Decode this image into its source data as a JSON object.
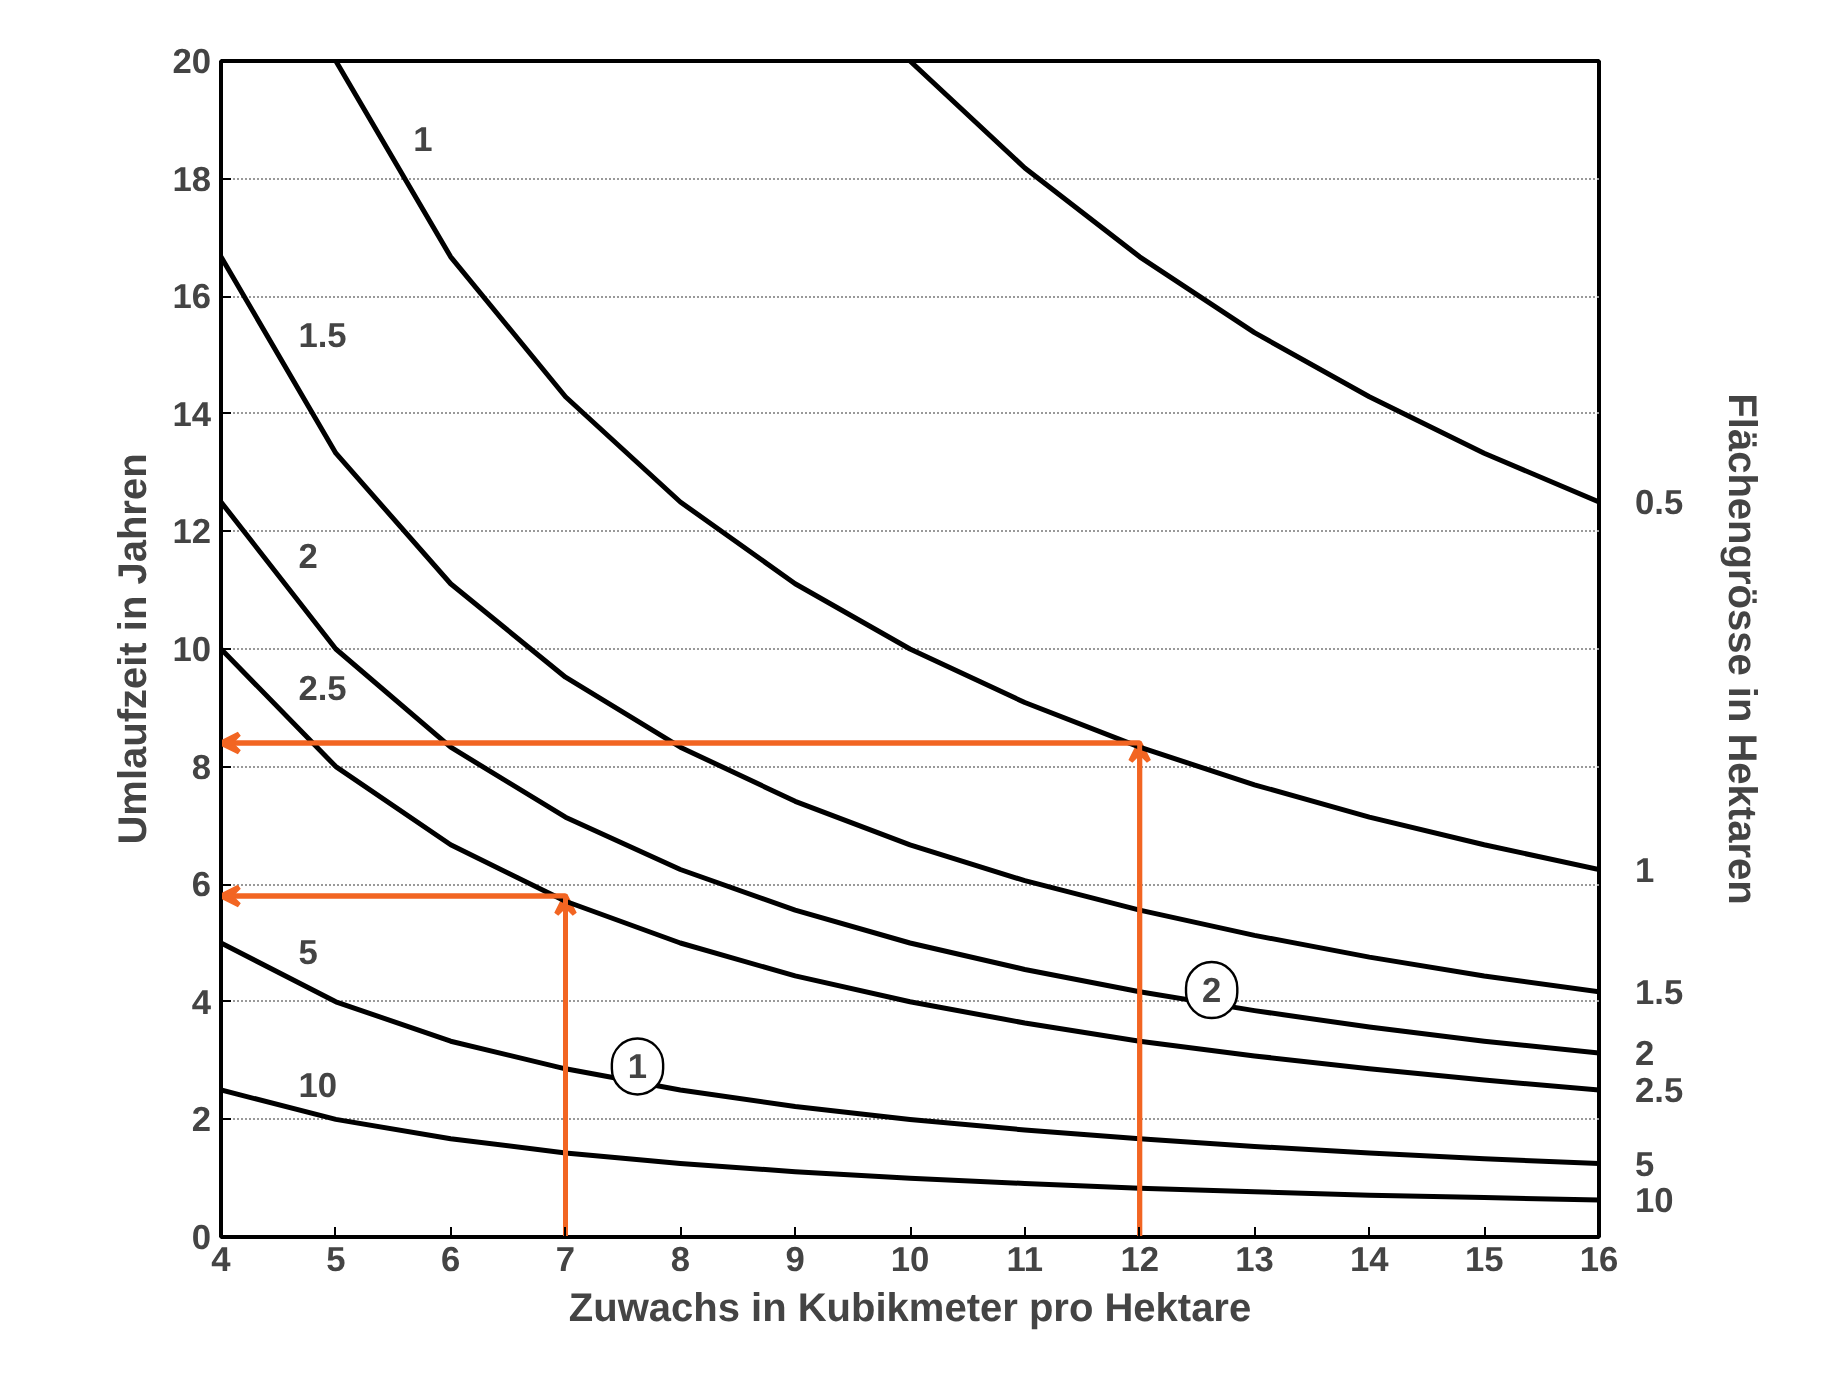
{
  "chart_data": {
    "type": "line",
    "xlabel": "Zuwachs in Kubikmeter pro Hektare",
    "ylabel": "Umlaufzeit in Jahren",
    "y2label": "Flächengrösse in Hektaren",
    "x": [
      4,
      5,
      6,
      7,
      8,
      9,
      10,
      11,
      12,
      13,
      14,
      15,
      16
    ],
    "xlim": [
      4,
      16
    ],
    "ylim": [
      0,
      20
    ],
    "xticks": [
      4,
      5,
      6,
      7,
      8,
      9,
      10,
      11,
      12,
      13,
      14,
      15,
      16
    ],
    "yticks": [
      0,
      2,
      4,
      6,
      8,
      10,
      12,
      14,
      16,
      18,
      20
    ],
    "grid": "y",
    "marker": "none",
    "line_style": "solid",
    "series": [
      {
        "name": "0.5",
        "color": "#000000",
        "values": [
          null,
          null,
          null,
          null,
          null,
          null,
          20,
          18.18,
          16.67,
          15.38,
          14.29,
          13.33,
          12.5
        ]
      },
      {
        "name": "1",
        "color": "#000000",
        "values": [
          null,
          20,
          16.67,
          14.29,
          12.5,
          11.11,
          10,
          9.09,
          8.33,
          7.69,
          7.14,
          6.67,
          6.25
        ]
      },
      {
        "name": "1.5",
        "color": "#000000",
        "values": [
          16.67,
          13.33,
          11.11,
          9.52,
          8.33,
          7.41,
          6.67,
          6.06,
          5.56,
          5.13,
          4.76,
          4.44,
          4.17
        ]
      },
      {
        "name": "2",
        "color": "#000000",
        "values": [
          12.5,
          10,
          8.33,
          7.14,
          6.25,
          5.56,
          5,
          4.55,
          4.17,
          3.85,
          3.57,
          3.33,
          3.13
        ]
      },
      {
        "name": "2.5",
        "color": "#000000",
        "values": [
          10,
          8,
          6.67,
          5.71,
          5,
          4.44,
          4,
          3.64,
          3.33,
          3.08,
          2.86,
          2.67,
          2.5
        ]
      },
      {
        "name": "5",
        "color": "#000000",
        "values": [
          5,
          4,
          3.33,
          2.86,
          2.5,
          2.22,
          2,
          1.82,
          1.67,
          1.54,
          1.43,
          1.33,
          1.25
        ]
      },
      {
        "name": "10",
        "color": "#000000",
        "values": [
          2.5,
          2,
          1.67,
          1.43,
          1.25,
          1.11,
          1,
          0.91,
          0.83,
          0.77,
          0.71,
          0.67,
          0.63
        ]
      },
      {
        "color": "#f26522",
        "x": [
          7,
          7,
          4
        ],
        "values": [
          0,
          5.8,
          5.8
        ]
      },
      {
        "color": "#f26522",
        "x": [
          12,
          12,
          4
        ],
        "values": [
          0,
          8.4,
          8.4
        ]
      }
    ],
    "annotations": [
      "1",
      "2"
    ]
  }
}
